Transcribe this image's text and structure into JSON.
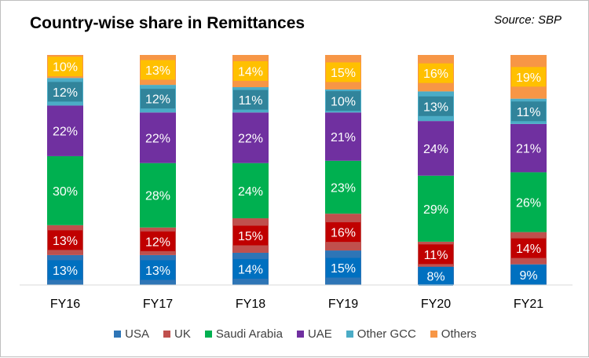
{
  "chart_data": {
    "type": "bar",
    "stacked": true,
    "title": "Country-wise share in Remittances",
    "source": "Source: SBP",
    "categories": [
      "FY16",
      "FY17",
      "FY18",
      "FY19",
      "FY20",
      "FY21"
    ],
    "ylim": [
      0,
      100
    ],
    "grid": false,
    "legend": "bottom",
    "series": [
      {
        "name": "USA",
        "color": "#2E75B6",
        "label_color": "#0070C0",
        "values": [
          13,
          13,
          14,
          15,
          8,
          9
        ],
        "labels": [
          "13%",
          "13%",
          "14%",
          "15%",
          "8%",
          "9%"
        ]
      },
      {
        "name": "UK",
        "color": "#C0504D",
        "label_color": "#C00000",
        "values": [
          13,
          12,
          15,
          16,
          11,
          14
        ],
        "labels": [
          "13%",
          "12%",
          "15%",
          "16%",
          "11%",
          "14%"
        ]
      },
      {
        "name": "Saudi Arabia",
        "color": "#00B050",
        "label_color": "#00B050",
        "values": [
          30,
          28,
          24,
          23,
          29,
          26
        ],
        "labels": [
          "30%",
          "28%",
          "24%",
          "23%",
          "29%",
          "26%"
        ]
      },
      {
        "name": "UAE",
        "color": "#7030A0",
        "label_color": "#7030A0",
        "values": [
          22,
          22,
          22,
          21,
          24,
          21
        ],
        "labels": [
          "22%",
          "22%",
          "22%",
          "21%",
          "24%",
          "21%"
        ]
      },
      {
        "name": "Other GCC",
        "color": "#4BACC6",
        "label_color": "#31849B",
        "values": [
          12,
          12,
          11,
          10,
          13,
          11
        ],
        "labels": [
          "12%",
          "12%",
          "11%",
          "10%",
          "13%",
          "11%"
        ]
      },
      {
        "name": "Others",
        "color": "#F79646",
        "label_color": "#FFC000",
        "values": [
          10,
          13,
          14,
          15,
          16,
          19
        ],
        "labels": [
          "10%",
          "13%",
          "14%",
          "15%",
          "16%",
          "19%"
        ]
      }
    ]
  }
}
